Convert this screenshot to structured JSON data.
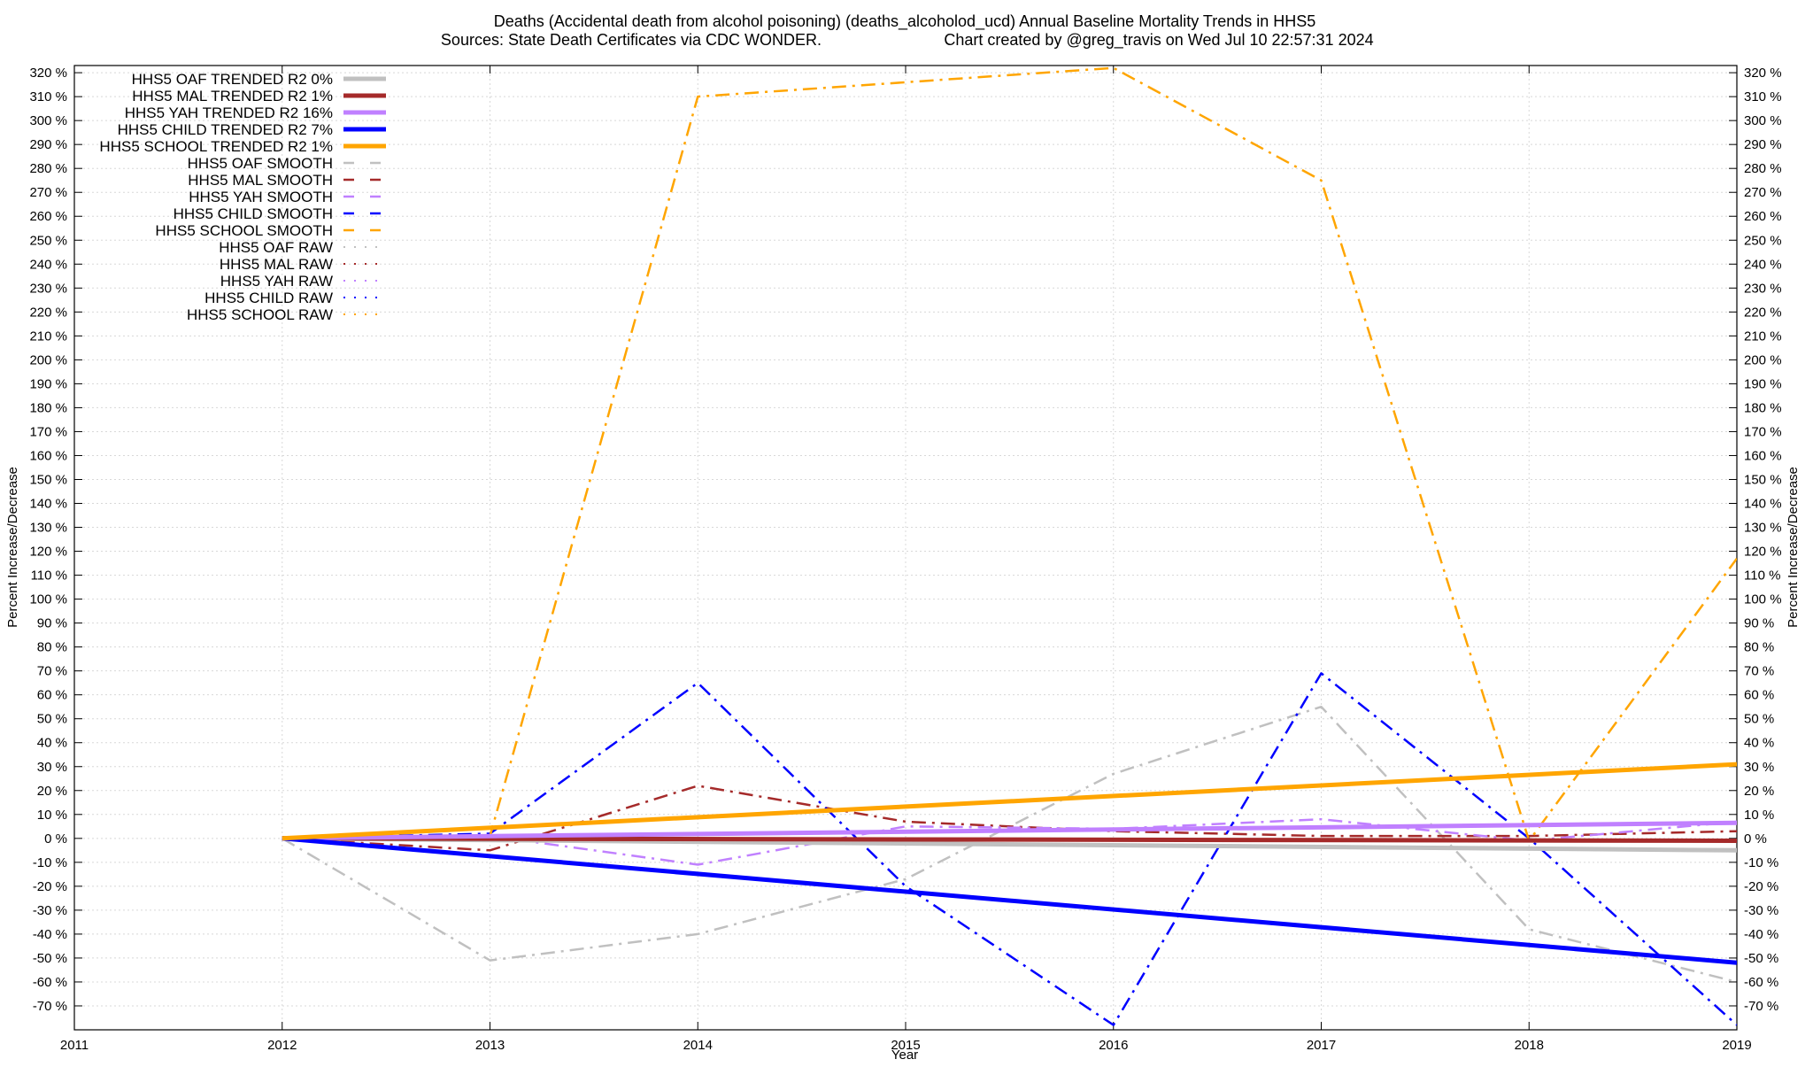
{
  "chart_data": {
    "type": "line",
    "title_line1": "Deaths (Accidental death from alcohol poisoning) (deaths_alcoholod_ucd)  Annual Baseline Mortality Trends in HHS5",
    "title_line2_left": "Sources: State Death Certificates via CDC WONDER.",
    "title_line2_right": "Chart created by @greg_travis on Wed Jul 10 22:57:31 2024",
    "xlabel": "Year",
    "ylabel_left": "Percent Increase/Decrease",
    "ylabel_right": "Percent Increase/Decrease",
    "xlim": [
      2011,
      2019
    ],
    "ylim": [
      -80,
      323
    ],
    "x_ticks": [
      "2011",
      "2012",
      "2013",
      "2014",
      "2015",
      "2016",
      "2017",
      "2018",
      "2019"
    ],
    "y_ticks": [
      "320 %",
      "310 %",
      "300 %",
      "290 %",
      "280 %",
      "270 %",
      "260 %",
      "250 %",
      "240 %",
      "230 %",
      "220 %",
      "210 %",
      "200 %",
      "190 %",
      "180 %",
      "170 %",
      "160 %",
      "150 %",
      "140 %",
      "130 %",
      "120 %",
      "110 %",
      "100 %",
      "90 %",
      "80 %",
      "70 %",
      "60 %",
      "50 %",
      "40 %",
      "30 %",
      "20 %",
      "10 %",
      "0 %",
      "-10 %",
      "-20 %",
      "-30 %",
      "-40 %",
      "-50 %",
      "-60 %",
      "-70 %"
    ],
    "grid": true,
    "legend_position": "top-left",
    "series": [
      {
        "name": "HHS5 OAF TRENDED R2   0%",
        "style": "trend",
        "color": "#c0c0c0",
        "x": [
          2012,
          2019
        ],
        "values": [
          0,
          -5
        ]
      },
      {
        "name": "HHS5 MAL TRENDED R2   1%",
        "style": "trend",
        "color": "#a52a2a",
        "x": [
          2012,
          2019
        ],
        "values": [
          0,
          -1
        ]
      },
      {
        "name": "HHS5 YAH TRENDED R2  16%",
        "style": "trend",
        "color": "#c080ff",
        "x": [
          2012,
          2019
        ],
        "values": [
          0,
          6.5
        ]
      },
      {
        "name": "HHS5 CHILD TRENDED R2   7%",
        "style": "trend",
        "color": "#0000ff",
        "x": [
          2012,
          2019
        ],
        "values": [
          0,
          -52
        ]
      },
      {
        "name": "HHS5 SCHOOL TRENDED R2   1%",
        "style": "trend",
        "color": "#ffa500",
        "x": [
          2012,
          2019
        ],
        "values": [
          0,
          31
        ]
      },
      {
        "name": "HHS5 OAF SMOOTH",
        "style": "smooth",
        "color": "#c0c0c0",
        "x": [
          2012,
          2013,
          2014,
          2015,
          2016,
          2017,
          2018,
          2019
        ],
        "values": [
          0,
          -51,
          -40,
          -17,
          27,
          55,
          -38,
          -60
        ]
      },
      {
        "name": "HHS5 MAL SMOOTH",
        "style": "smooth",
        "color": "#a52a2a",
        "x": [
          2012,
          2013,
          2014,
          2015,
          2016,
          2017,
          2018,
          2019
        ],
        "values": [
          0,
          -5,
          22,
          7,
          3,
          1,
          1,
          3
        ]
      },
      {
        "name": "HHS5 YAH SMOOTH",
        "style": "smooth",
        "color": "#c080ff",
        "x": [
          2012,
          2013,
          2014,
          2015,
          2016,
          2017,
          2018,
          2019
        ],
        "values": [
          0,
          1,
          -11,
          5,
          4,
          8,
          -1,
          7
        ]
      },
      {
        "name": "HHS5 CHILD SMOOTH",
        "style": "smooth",
        "color": "#0000ff",
        "x": [
          2012,
          2013,
          2014,
          2015,
          2016,
          2017,
          2018,
          2019
        ],
        "values": [
          0,
          2,
          65,
          -20,
          -78,
          69,
          0,
          -78
        ]
      },
      {
        "name": "HHS5 SCHOOL SMOOTH",
        "style": "smooth",
        "color": "#ffa500",
        "x": [
          2012,
          2013,
          2014,
          2015,
          2016,
          2017,
          2018,
          2019
        ],
        "values": [
          0,
          1,
          310,
          316,
          322,
          275,
          -1,
          117
        ]
      },
      {
        "name": "HHS5 OAF RAW",
        "style": "raw",
        "color": "#c0c0c0",
        "x": [],
        "values": []
      },
      {
        "name": "HHS5 MAL RAW",
        "style": "raw",
        "color": "#a52a2a",
        "x": [],
        "values": []
      },
      {
        "name": "HHS5 YAH RAW",
        "style": "raw",
        "color": "#c080ff",
        "x": [],
        "values": []
      },
      {
        "name": "HHS5 CHILD RAW",
        "style": "raw",
        "color": "#0000ff",
        "x": [],
        "values": []
      },
      {
        "name": "HHS5 SCHOOL RAW",
        "style": "raw",
        "color": "#ffa500",
        "x": [],
        "values": []
      }
    ]
  }
}
